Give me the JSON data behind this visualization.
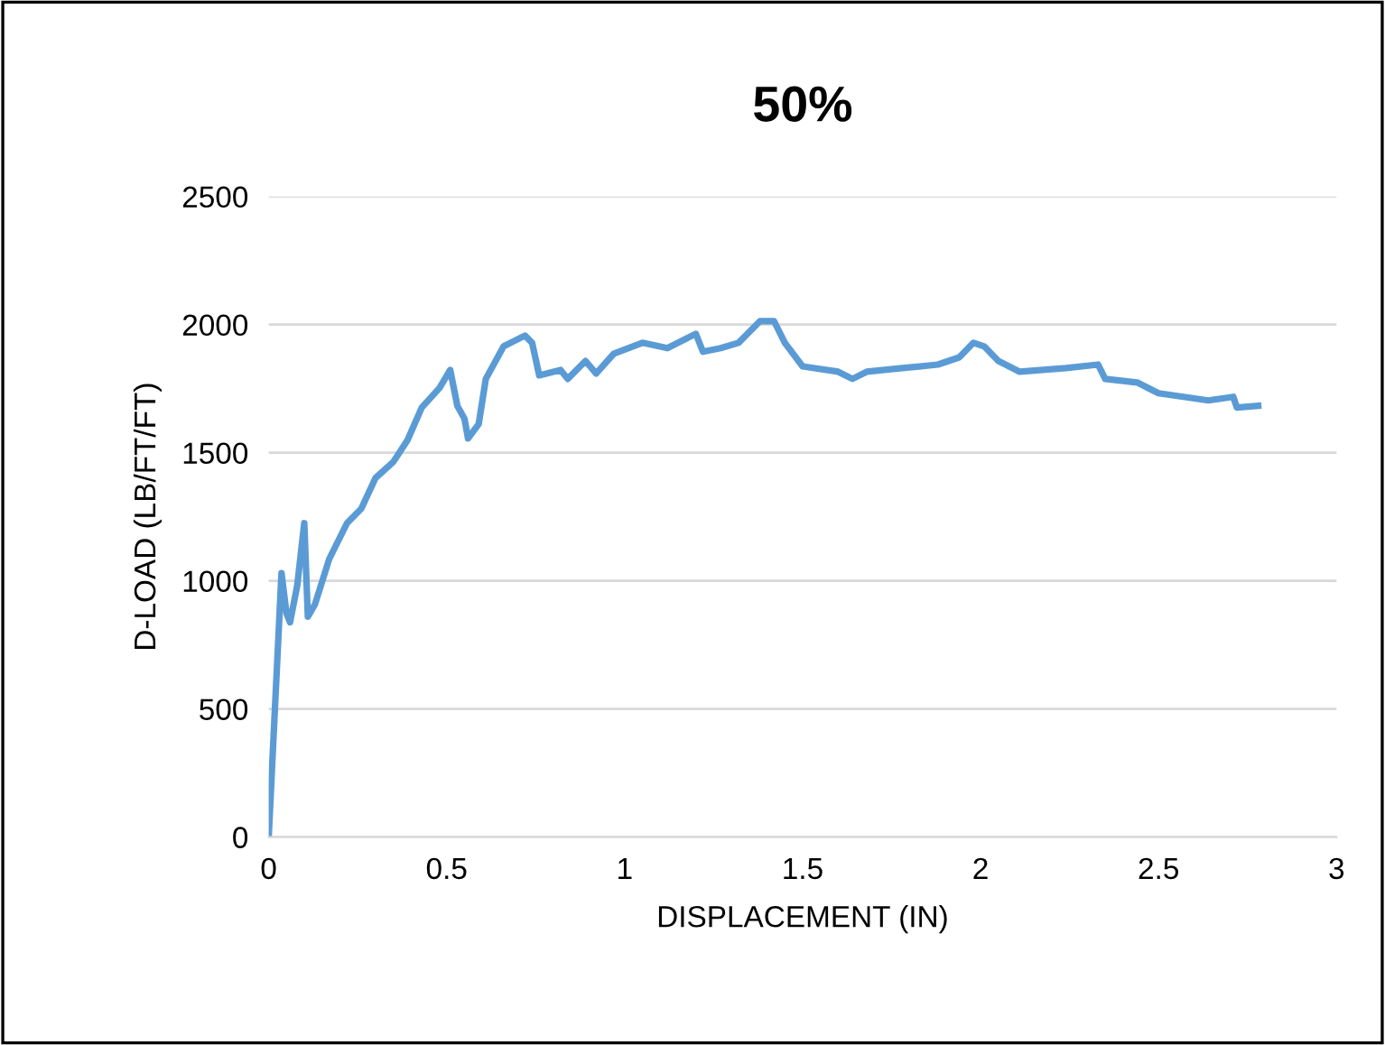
{
  "chart_data": {
    "type": "line",
    "title": "50%",
    "xlabel": "DISPLACEMENT (IN)",
    "ylabel": "D-LOAD (LB/FT/FT)",
    "xlim": [
      0,
      3
    ],
    "ylim": [
      0,
      2500
    ],
    "xticks": [
      0,
      {
        "value": 0.5,
        "label": "0.5"
      },
      1,
      {
        "value": 1.5,
        "label": "1.5"
      },
      2,
      {
        "value": 2.5,
        "label": "2.5"
      },
      3
    ],
    "yticks": [
      0,
      500,
      1000,
      1500,
      2000,
      2500
    ],
    "grid": "y",
    "legend": false,
    "marker": "none",
    "line_style": "solid",
    "series": [
      {
        "color": "#5b9bd5",
        "x": [
          0,
          0.036,
          0.05,
          0.06,
          0.08,
          0.1,
          0.11,
          0.13,
          0.17,
          0.22,
          0.26,
          0.3,
          0.35,
          0.39,
          0.43,
          0.48,
          0.51,
          0.53,
          0.55,
          0.56,
          0.59,
          0.61,
          0.66,
          0.72,
          0.74,
          0.76,
          0.82,
          0.84,
          0.89,
          0.92,
          0.97,
          1.05,
          1.12,
          1.2,
          1.22,
          1.27,
          1.32,
          1.38,
          1.42,
          1.45,
          1.5,
          1.6,
          1.64,
          1.68,
          1.78,
          1.88,
          1.94,
          1.98,
          2.01,
          2.05,
          2.11,
          2.24,
          2.33,
          2.35,
          2.44,
          2.5,
          2.64,
          2.71,
          2.72,
          2.78
        ],
        "values": [
          0,
          1030,
          873,
          838,
          980,
          1225,
          860,
          908,
          1085,
          1225,
          1281,
          1401,
          1464,
          1549,
          1676,
          1753,
          1823,
          1683,
          1633,
          1556,
          1612,
          1788,
          1915,
          1957,
          1929,
          1802,
          1823,
          1788,
          1858,
          1809,
          1887,
          1929,
          1908,
          1964,
          1894,
          1908,
          1929,
          2013,
          2013,
          1929,
          1837,
          1816,
          1788,
          1816,
          1830,
          1844,
          1872,
          1929,
          1915,
          1858,
          1816,
          1830,
          1844,
          1788,
          1774,
          1732,
          1704,
          1718,
          1676,
          1683
        ]
      }
    ]
  }
}
